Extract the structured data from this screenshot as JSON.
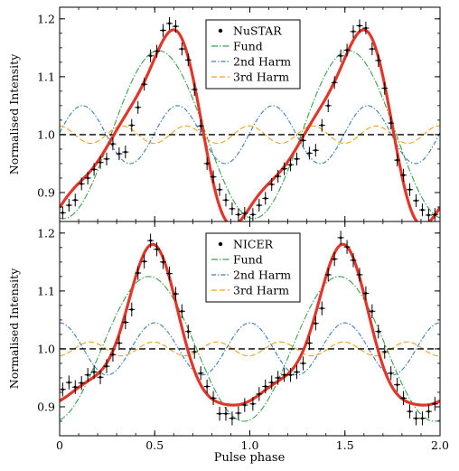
{
  "figure": {
    "shared_xlabel": "Pulse phase"
  },
  "chart_data": [
    {
      "type": "line",
      "panel": "top",
      "ylabel": "Normalised Intensity",
      "xlim": [
        0,
        2.0
      ],
      "ylim": [
        0.85,
        1.22
      ],
      "xticks": [
        0,
        0.5,
        1.0,
        1.5,
        2.0
      ],
      "xtick_labels": [
        "0",
        "0.5",
        "1.0",
        "1.5",
        "2.0"
      ],
      "yticks": [
        0.9,
        1.0,
        1.1,
        1.2
      ],
      "ytick_labels": [
        "0.9",
        "1.0",
        "1.1",
        "1.2"
      ],
      "legend_position": "top-right",
      "baseline": 1.0,
      "colors": {
        "data": "#000000",
        "model": "#e2362a",
        "fund": "#3aa04a",
        "harm2": "#3b7ebf",
        "harm3": "#f0a020"
      },
      "data_label": "NuSTAR",
      "phase": [
        0.016,
        0.049,
        0.082,
        0.115,
        0.148,
        0.181,
        0.214,
        0.247,
        0.28,
        0.313,
        0.346,
        0.379,
        0.412,
        0.445,
        0.478,
        0.511,
        0.544,
        0.577,
        0.61,
        0.643,
        0.676,
        0.709,
        0.742,
        0.775,
        0.808,
        0.841,
        0.874,
        0.907,
        0.94,
        0.973,
        1.016,
        1.049,
        1.082,
        1.115,
        1.148,
        1.181,
        1.214,
        1.247,
        1.28,
        1.313,
        1.346,
        1.379,
        1.412,
        1.445,
        1.478,
        1.511,
        1.544,
        1.577,
        1.61,
        1.643,
        1.676,
        1.709,
        1.742,
        1.775,
        1.808,
        1.841,
        1.874,
        1.907,
        1.94,
        1.973
      ],
      "intensity": [
        0.865,
        0.878,
        0.887,
        0.915,
        0.925,
        0.94,
        0.952,
        0.958,
        0.984,
        0.967,
        0.97,
        1.016,
        1.047,
        1.087,
        1.136,
        1.144,
        1.18,
        1.192,
        1.187,
        1.148,
        1.129,
        1.078,
        1.015,
        0.95,
        0.927,
        0.905,
        0.887,
        0.872,
        0.862,
        0.864,
        0.862,
        0.878,
        0.89,
        0.914,
        0.928,
        0.941,
        0.948,
        0.958,
        0.99,
        0.968,
        0.973,
        1.016,
        1.05,
        1.09,
        1.136,
        1.146,
        1.178,
        1.188,
        1.184,
        1.148,
        1.128,
        1.08,
        1.02,
        0.956,
        0.93,
        0.905,
        0.886,
        0.87,
        0.861,
        0.862
      ],
      "error": 0.011,
      "components": [
        {
          "name": "Fund",
          "style": "dash-dot",
          "mean": 1.0,
          "amplitude": 0.145,
          "peak_phase": 0.52,
          "harmonic": 1
        },
        {
          "name": "2nd Harm",
          "style": "dash-dot",
          "mean": 1.0,
          "amplitude": 0.05,
          "peak_phase": 0.12,
          "harmonic": 2
        },
        {
          "name": "3rd Harm",
          "style": "dashed",
          "mean": 1.0,
          "amplitude": 0.015,
          "peak_phase": 0.33,
          "harmonic": 3
        }
      ]
    },
    {
      "type": "line",
      "panel": "bottom",
      "ylabel": "Normalised Intensity",
      "xlim": [
        0,
        2.0
      ],
      "ylim": [
        0.85,
        1.22
      ],
      "xticks": [
        0,
        0.5,
        1.0,
        1.5,
        2.0
      ],
      "xtick_labels": [
        "0",
        "0.5",
        "1.0",
        "1.5",
        "2.0"
      ],
      "yticks": [
        0.9,
        1.0,
        1.1,
        1.2
      ],
      "ytick_labels": [
        "0.9",
        "1.0",
        "1.1",
        "1.2"
      ],
      "legend_position": "top-center",
      "baseline": 1.0,
      "colors": {
        "data": "#000000",
        "model": "#e2362a",
        "fund": "#3aa04a",
        "harm2": "#3b7ebf",
        "harm3": "#f0a020"
      },
      "data_label": "NICER",
      "phase": [
        0.016,
        0.049,
        0.082,
        0.115,
        0.148,
        0.181,
        0.214,
        0.247,
        0.28,
        0.313,
        0.346,
        0.379,
        0.412,
        0.445,
        0.478,
        0.511,
        0.544,
        0.577,
        0.61,
        0.643,
        0.676,
        0.709,
        0.742,
        0.775,
        0.808,
        0.841,
        0.874,
        0.907,
        0.94,
        0.973,
        1.016,
        1.049,
        1.082,
        1.115,
        1.148,
        1.181,
        1.214,
        1.247,
        1.28,
        1.313,
        1.346,
        1.379,
        1.412,
        1.445,
        1.478,
        1.511,
        1.544,
        1.577,
        1.61,
        1.643,
        1.676,
        1.709,
        1.742,
        1.775,
        1.808,
        1.841,
        1.874,
        1.907,
        1.94,
        1.973
      ],
      "intensity": [
        0.93,
        0.942,
        0.934,
        0.941,
        0.955,
        0.96,
        0.951,
        0.97,
        0.99,
        1.01,
        1.046,
        1.068,
        1.131,
        1.151,
        1.187,
        1.172,
        1.15,
        1.13,
        1.095,
        1.065,
        1.03,
        0.995,
        0.958,
        0.935,
        0.915,
        0.888,
        0.888,
        0.88,
        0.889,
        0.903,
        0.905,
        0.922,
        0.935,
        0.942,
        0.95,
        0.955,
        0.955,
        0.96,
        0.975,
        1.01,
        1.044,
        1.07,
        1.128,
        1.155,
        1.192,
        1.176,
        1.153,
        1.128,
        1.096,
        1.065,
        1.03,
        0.995,
        0.958,
        0.938,
        0.915,
        0.892,
        0.88,
        0.88,
        0.892,
        0.905
      ],
      "error": 0.012,
      "components": [
        {
          "name": "Fund",
          "style": "dash-dot",
          "mean": 1.0,
          "amplitude": 0.125,
          "peak_phase": 0.47,
          "harmonic": 1
        },
        {
          "name": "2nd Harm",
          "style": "dash-dot",
          "mean": 1.0,
          "amplitude": 0.045,
          "peak_phase": 0.0,
          "harmonic": 2
        },
        {
          "name": "3rd Harm",
          "style": "dashed",
          "mean": 1.0,
          "amplitude": 0.012,
          "peak_phase": 0.16,
          "harmonic": 3
        }
      ]
    }
  ]
}
